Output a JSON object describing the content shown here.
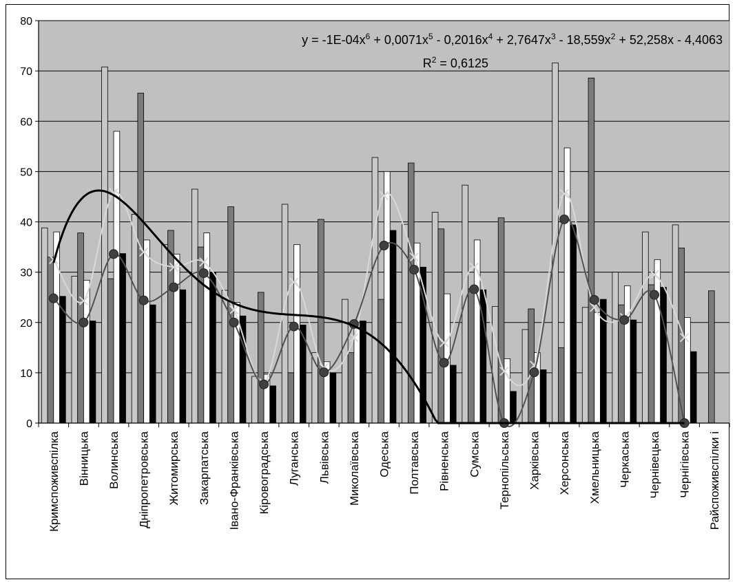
{
  "chart_data": {
    "type": "bar",
    "ylim": [
      0,
      80
    ],
    "yticks": [
      0,
      10,
      20,
      30,
      40,
      50,
      60,
      70,
      80
    ],
    "grid": true,
    "plot_background": "#c0c0c0",
    "categories": [
      "Кримспоживспілка",
      "Вінницька",
      "Волинська",
      "Дніпропетровська",
      "Житомирська",
      "Закарпатська",
      "Івано-Франківська",
      "Кіровоградська",
      "Луганська",
      "Львівська",
      "Миколаївська",
      "Одеська",
      "Полтавська",
      "Рівненська",
      "Сумська",
      "Тернопільська",
      "Харківська",
      "Херсонська",
      "Хмельницька",
      "Черкаська",
      "Чернівецька",
      "Чернігівська",
      "Райспоживспілки і"
    ],
    "series": [
      {
        "kind": "bar",
        "color": "#c8c8c8",
        "values": [
          38.8,
          29.2,
          70.8,
          41.5,
          35.5,
          46.5,
          26.4,
          9.3,
          43.5,
          14.0,
          24.6,
          52.8,
          39.5,
          41.9,
          47.3,
          23.2,
          18.6,
          71.6,
          23.0,
          30.0,
          38.0,
          39.4,
          null
        ]
      },
      {
        "kind": "bar",
        "color": "#7a7a7a",
        "values": [
          33.0,
          37.8,
          28.7,
          65.6,
          38.3,
          35.0,
          43.0,
          26.0,
          10.0,
          40.5,
          14.0,
          24.6,
          51.7,
          38.6,
          26.7,
          40.8,
          22.7,
          15.0,
          68.6,
          23.5,
          27.5,
          34.8,
          26.3
        ]
      },
      {
        "kind": "bar",
        "color": "#ffffff",
        "values": [
          38.0,
          28.4,
          58.0,
          36.4,
          33.6,
          37.8,
          24.0,
          9.7,
          35.5,
          12.2,
          19.0,
          50.0,
          35.8,
          25.7,
          36.4,
          12.8,
          14.0,
          54.7,
          22.0,
          27.3,
          32.5,
          21.0,
          null
        ]
      },
      {
        "kind": "bar",
        "color": "#000000",
        "values": [
          25.2,
          20.3,
          33.7,
          23.5,
          26.5,
          30.0,
          21.3,
          7.4,
          19.5,
          10.0,
          20.3,
          38.3,
          31.0,
          11.5,
          26.5,
          6.3,
          10.6,
          39.4,
          24.6,
          20.5,
          27.0,
          14.2,
          null
        ]
      },
      {
        "kind": "line",
        "color": "#d8d8d8",
        "marker": "x",
        "values": [
          32.5,
          24.3,
          45.8,
          34.0,
          31.0,
          32.0,
          22.5,
          8.0,
          28.0,
          11.0,
          17.0,
          45.2,
          33.0,
          16.0,
          31.0,
          10.3,
          11.5,
          45.6,
          23.0,
          21.0,
          29.5,
          17.0,
          null
        ]
      },
      {
        "kind": "line",
        "color": "#505050",
        "marker": "circle",
        "values": [
          24.8,
          20.0,
          33.6,
          24.4,
          27.0,
          29.8,
          20.0,
          7.7,
          19.2,
          10.1,
          19.7,
          35.3,
          30.5,
          12.0,
          26.6,
          0.0,
          10.1,
          40.5,
          24.5,
          20.5,
          25.5,
          0.0,
          null
        ]
      }
    ],
    "trendline": {
      "color": "#000000",
      "coefficients": [
        -4.4063,
        52.258,
        -18.559,
        2.7647,
        -0.2016,
        0.0071,
        -0.0001
      ],
      "equation": "y = -1E-04x^6 + 0,0071x^5 - 0,2016x^4 + 2,7647x^3 - 18,559x^2 + 52,258x - 4,4063",
      "equation_parts": [
        {
          "t": "y = -1E-04x",
          "sup": false
        },
        {
          "t": "6",
          "sup": true
        },
        {
          "t": " + 0,0071x",
          "sup": false
        },
        {
          "t": "5",
          "sup": true
        },
        {
          "t": " - 0,2016x",
          "sup": false
        },
        {
          "t": "4",
          "sup": true
        },
        {
          "t": " + 2,7647x",
          "sup": false
        },
        {
          "t": "3",
          "sup": true
        },
        {
          "t": " - 18,559x",
          "sup": false
        },
        {
          "t": "2",
          "sup": true
        },
        {
          "t": " + 52,258x - 4,4063",
          "sup": false
        }
      ],
      "r2_parts": [
        {
          "t": "R",
          "sup": false
        },
        {
          "t": "2",
          "sup": true
        },
        {
          "t": " = 0,6125",
          "sup": false
        }
      ]
    }
  }
}
